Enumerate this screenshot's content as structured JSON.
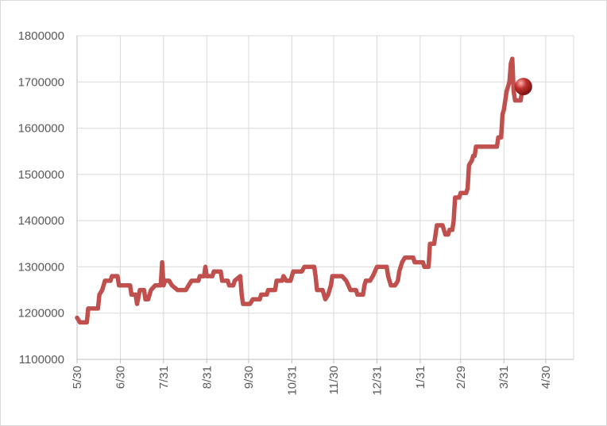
{
  "chart_data": {
    "type": "line",
    "title": "",
    "xlabel": "",
    "ylabel": "",
    "ylim": [
      1100000,
      1800000
    ],
    "y_ticks": [
      1100000,
      1200000,
      1300000,
      1400000,
      1500000,
      1600000,
      1700000,
      1800000
    ],
    "y_tick_labels": [
      "1100000",
      "1200000",
      "1300000",
      "1400000",
      "1500000",
      "1600000",
      "1700000",
      "1800000"
    ],
    "x_tick_labels": [
      "5/30",
      "6/30",
      "7/31",
      "8/31",
      "9/30",
      "10/31",
      "11/30",
      "12/31",
      "1/31",
      "2/29",
      "3/31",
      "4/30"
    ],
    "x_tick_index": [
      0,
      31,
      62,
      93,
      123,
      154,
      184,
      215,
      246,
      275,
      306,
      336
    ],
    "grid": true,
    "legend": "none",
    "series": [
      {
        "color": "#c0504d",
        "marker_color": "#c0302e",
        "points": [
          [
            0,
            1190000
          ],
          [
            2,
            1180000
          ],
          [
            7,
            1180000
          ],
          [
            8,
            1210000
          ],
          [
            15,
            1210000
          ],
          [
            16,
            1240000
          ],
          [
            18,
            1250000
          ],
          [
            20,
            1270000
          ],
          [
            24,
            1270000
          ],
          [
            25,
            1280000
          ],
          [
            29,
            1280000
          ],
          [
            30,
            1260000
          ],
          [
            38,
            1260000
          ],
          [
            39,
            1240000
          ],
          [
            42,
            1240000
          ],
          [
            43,
            1220000
          ],
          [
            45,
            1250000
          ],
          [
            48,
            1250000
          ],
          [
            49,
            1230000
          ],
          [
            51,
            1230000
          ],
          [
            53,
            1250000
          ],
          [
            56,
            1260000
          ],
          [
            60,
            1260000
          ],
          [
            61,
            1310000
          ],
          [
            62,
            1260000
          ],
          [
            63,
            1270000
          ],
          [
            66,
            1270000
          ],
          [
            68,
            1260000
          ],
          [
            72,
            1250000
          ],
          [
            78,
            1250000
          ],
          [
            80,
            1260000
          ],
          [
            82,
            1270000
          ],
          [
            87,
            1270000
          ],
          [
            88,
            1280000
          ],
          [
            91,
            1280000
          ],
          [
            92,
            1300000
          ],
          [
            93,
            1280000
          ],
          [
            97,
            1280000
          ],
          [
            98,
            1290000
          ],
          [
            103,
            1290000
          ],
          [
            104,
            1270000
          ],
          [
            108,
            1270000
          ],
          [
            109,
            1260000
          ],
          [
            112,
            1260000
          ],
          [
            113,
            1270000
          ],
          [
            117,
            1280000
          ],
          [
            118,
            1240000
          ],
          [
            119,
            1220000
          ],
          [
            124,
            1220000
          ],
          [
            126,
            1230000
          ],
          [
            131,
            1230000
          ],
          [
            132,
            1240000
          ],
          [
            136,
            1240000
          ],
          [
            137,
            1250000
          ],
          [
            142,
            1250000
          ],
          [
            143,
            1270000
          ],
          [
            147,
            1270000
          ],
          [
            148,
            1280000
          ],
          [
            150,
            1270000
          ],
          [
            153,
            1270000
          ],
          [
            155,
            1290000
          ],
          [
            161,
            1290000
          ],
          [
            163,
            1300000
          ],
          [
            170,
            1300000
          ],
          [
            171,
            1280000
          ],
          [
            172,
            1250000
          ],
          [
            176,
            1250000
          ],
          [
            178,
            1230000
          ],
          [
            180,
            1240000
          ],
          [
            182,
            1260000
          ],
          [
            183,
            1280000
          ],
          [
            190,
            1280000
          ],
          [
            193,
            1270000
          ],
          [
            196,
            1250000
          ],
          [
            200,
            1250000
          ],
          [
            201,
            1240000
          ],
          [
            205,
            1240000
          ],
          [
            206,
            1260000
          ],
          [
            207,
            1270000
          ],
          [
            210,
            1270000
          ],
          [
            212,
            1280000
          ],
          [
            215,
            1300000
          ],
          [
            222,
            1300000
          ],
          [
            223,
            1280000
          ],
          [
            225,
            1260000
          ],
          [
            228,
            1260000
          ],
          [
            230,
            1270000
          ],
          [
            231,
            1290000
          ],
          [
            233,
            1310000
          ],
          [
            235,
            1320000
          ],
          [
            241,
            1320000
          ],
          [
            242,
            1310000
          ],
          [
            248,
            1310000
          ],
          [
            249,
            1300000
          ],
          [
            252,
            1300000
          ],
          [
            253,
            1350000
          ],
          [
            256,
            1350000
          ],
          [
            257,
            1370000
          ],
          [
            258,
            1390000
          ],
          [
            262,
            1390000
          ],
          [
            264,
            1370000
          ],
          [
            266,
            1370000
          ],
          [
            267,
            1380000
          ],
          [
            269,
            1380000
          ],
          [
            270,
            1400000
          ],
          [
            271,
            1450000
          ],
          [
            274,
            1450000
          ],
          [
            275,
            1460000
          ],
          [
            279,
            1460000
          ],
          [
            280,
            1470000
          ],
          [
            281,
            1520000
          ],
          [
            283,
            1530000
          ],
          [
            284,
            1540000
          ],
          [
            285,
            1540000
          ],
          [
            286,
            1560000
          ],
          [
            301,
            1560000
          ],
          [
            302,
            1580000
          ],
          [
            304,
            1580000
          ],
          [
            305,
            1630000
          ],
          [
            306,
            1640000
          ],
          [
            308,
            1680000
          ],
          [
            310,
            1700000
          ],
          [
            311,
            1740000
          ],
          [
            312,
            1750000
          ],
          [
            313,
            1680000
          ],
          [
            314,
            1660000
          ],
          [
            318,
            1660000
          ],
          [
            319,
            1680000
          ],
          [
            320,
            1690000
          ]
        ],
        "end_marker": [
          320,
          1690000
        ]
      }
    ]
  }
}
